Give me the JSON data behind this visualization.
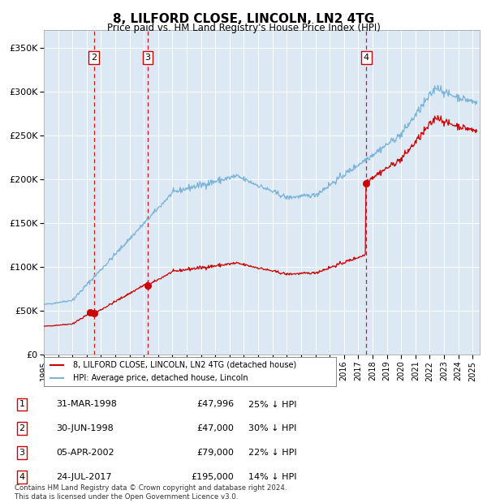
{
  "title": "8, LILFORD CLOSE, LINCOLN, LN2 4TG",
  "subtitle": "Price paid vs. HM Land Registry's House Price Index (HPI)",
  "background_color": "#dce9f5",
  "plot_bg_color": "#dce9f5",
  "hpi_color": "#7ab4d8",
  "price_color": "#cc0000",
  "transactions": [
    {
      "num": 1,
      "date_str": "31-MAR-1998",
      "price": 47996,
      "pct": "25%",
      "date_x": 1998.25
    },
    {
      "num": 2,
      "date_str": "30-JUN-1998",
      "price": 47000,
      "pct": "30%",
      "date_x": 1998.5
    },
    {
      "num": 3,
      "date_str": "05-APR-2002",
      "price": 79000,
      "pct": "22%",
      "date_x": 2002.27
    },
    {
      "num": 4,
      "date_str": "24-JUL-2017",
      "price": 195000,
      "pct": "14%",
      "date_x": 2017.56
    }
  ],
  "show_numbers": [
    2,
    3,
    4
  ],
  "ylabel_ticks": [
    "£0",
    "£50K",
    "£100K",
    "£150K",
    "£200K",
    "£250K",
    "£300K",
    "£350K"
  ],
  "ytick_vals": [
    0,
    50000,
    100000,
    150000,
    200000,
    250000,
    300000,
    350000
  ],
  "xmin": 1995.0,
  "xmax": 2025.5,
  "ymin": 0,
  "ymax": 370000,
  "legend_label_red": "8, LILFORD CLOSE, LINCOLN, LN2 4TG (detached house)",
  "legend_label_blue": "HPI: Average price, detached house, Lincoln",
  "footer": "Contains HM Land Registry data © Crown copyright and database right 2024.\nThis data is licensed under the Open Government Licence v3.0."
}
